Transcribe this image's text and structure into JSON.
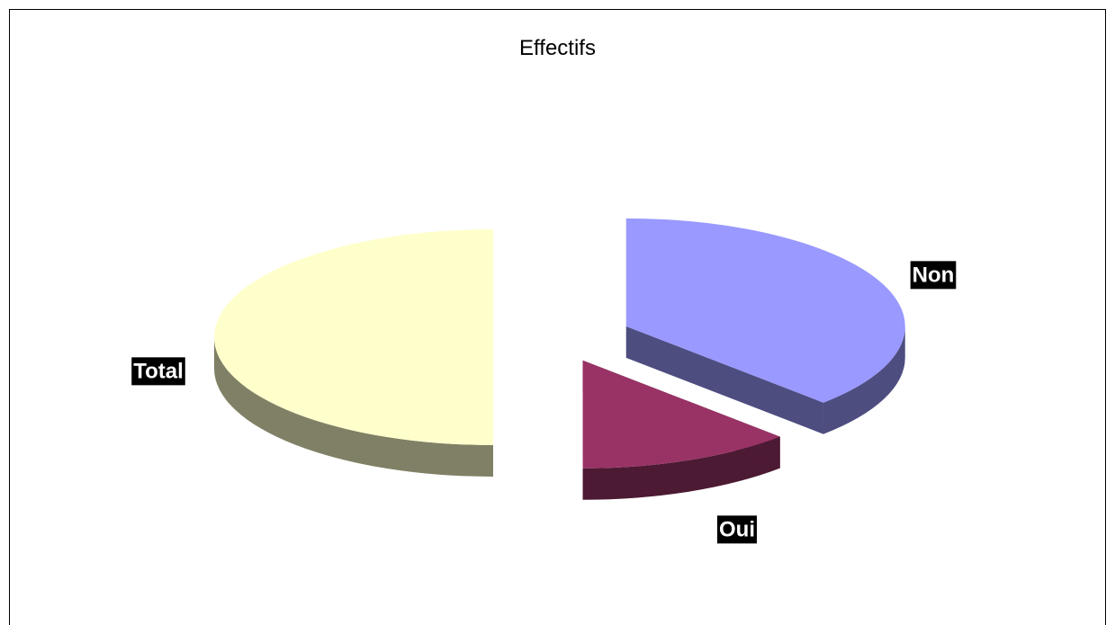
{
  "chart_data": {
    "type": "pie",
    "title": "Effectifs",
    "three_d": true,
    "slices": [
      {
        "label": "Non",
        "value": 37.5,
        "color": "#9999FF"
      },
      {
        "label": "Oui",
        "value": 12.5,
        "color": "#993366"
      },
      {
        "label": "Total",
        "value": 50,
        "color": "#FFFFCC"
      }
    ]
  }
}
